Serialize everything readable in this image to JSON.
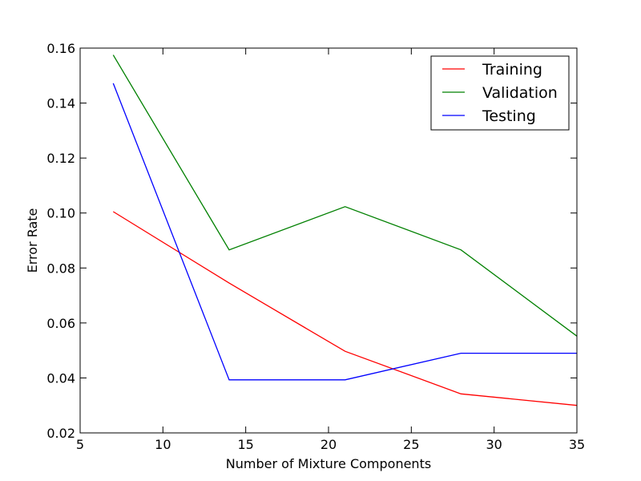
{
  "chart_data": {
    "type": "line",
    "xlabel": "Number of Mixture Components",
    "ylabel": "Error Rate",
    "xlim": [
      5,
      35
    ],
    "ylim": [
      0.02,
      0.16
    ],
    "xticks": [
      5,
      10,
      15,
      20,
      25,
      30,
      35
    ],
    "xtick_labels": [
      "5",
      "10",
      "15",
      "20",
      "25",
      "30",
      "35"
    ],
    "yticks": [
      0.02,
      0.04,
      0.06,
      0.08,
      0.1,
      0.12,
      0.14,
      0.16
    ],
    "ytick_labels": [
      "0.02",
      "0.04",
      "0.06",
      "0.08",
      "0.10",
      "0.12",
      "0.14",
      "0.16"
    ],
    "grid": false,
    "legend_position": "top-right",
    "x": [
      7,
      14,
      21,
      28,
      35
    ],
    "series": [
      {
        "name": "Training",
        "color": "#ff0000",
        "values": [
          0.1005,
          0.0745,
          0.0497,
          0.0342,
          0.03
        ]
      },
      {
        "name": "Validation",
        "color": "#008000",
        "values": [
          0.1575,
          0.0866,
          0.1023,
          0.0866,
          0.0552
        ]
      },
      {
        "name": "Testing",
        "color": "#0000ff",
        "values": [
          0.1472,
          0.0393,
          0.0393,
          0.049,
          0.049
        ]
      }
    ]
  }
}
